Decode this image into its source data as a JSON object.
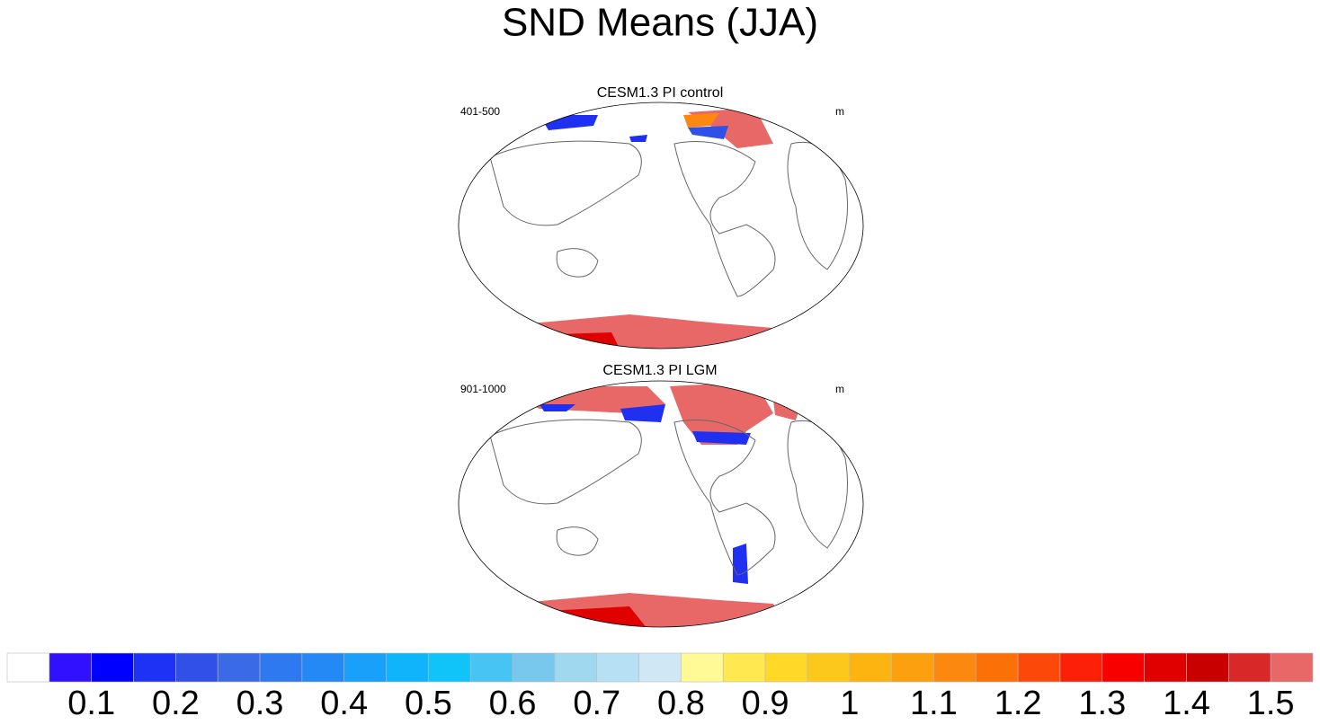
{
  "title": "SND Means (JJA)",
  "panels": [
    {
      "title": "CESM1.3 PI control",
      "left": "401-500",
      "right": "m"
    },
    {
      "title": "CESM1.3 PI LGM",
      "left": "901-1000",
      "right": "m"
    }
  ],
  "colorbar": {
    "colors": [
      "#ffffff",
      "#3010ff",
      "#0000ff",
      "#1e32f5",
      "#3050e8",
      "#3a6ae6",
      "#2e78f0",
      "#2488f5",
      "#18a0fa",
      "#10b4fa",
      "#10c4fa",
      "#48c4f4",
      "#78c8ee",
      "#a0d8f0",
      "#b8e0f4",
      "#d0e8f6",
      "#fffa96",
      "#ffe850",
      "#ffd828",
      "#fcc81c",
      "#fcb410",
      "#fca010",
      "#fc8810",
      "#fc7008",
      "#fc4808",
      "#fc2008",
      "#f80000",
      "#e00000",
      "#c80000",
      "#d82828",
      "#e86868"
    ],
    "labels": [
      0.1,
      0.2,
      0.3,
      0.4,
      0.5,
      0.6,
      0.7,
      0.8,
      0.9,
      1,
      1.1,
      1.2,
      1.3,
      1.4,
      1.5
    ]
  }
}
